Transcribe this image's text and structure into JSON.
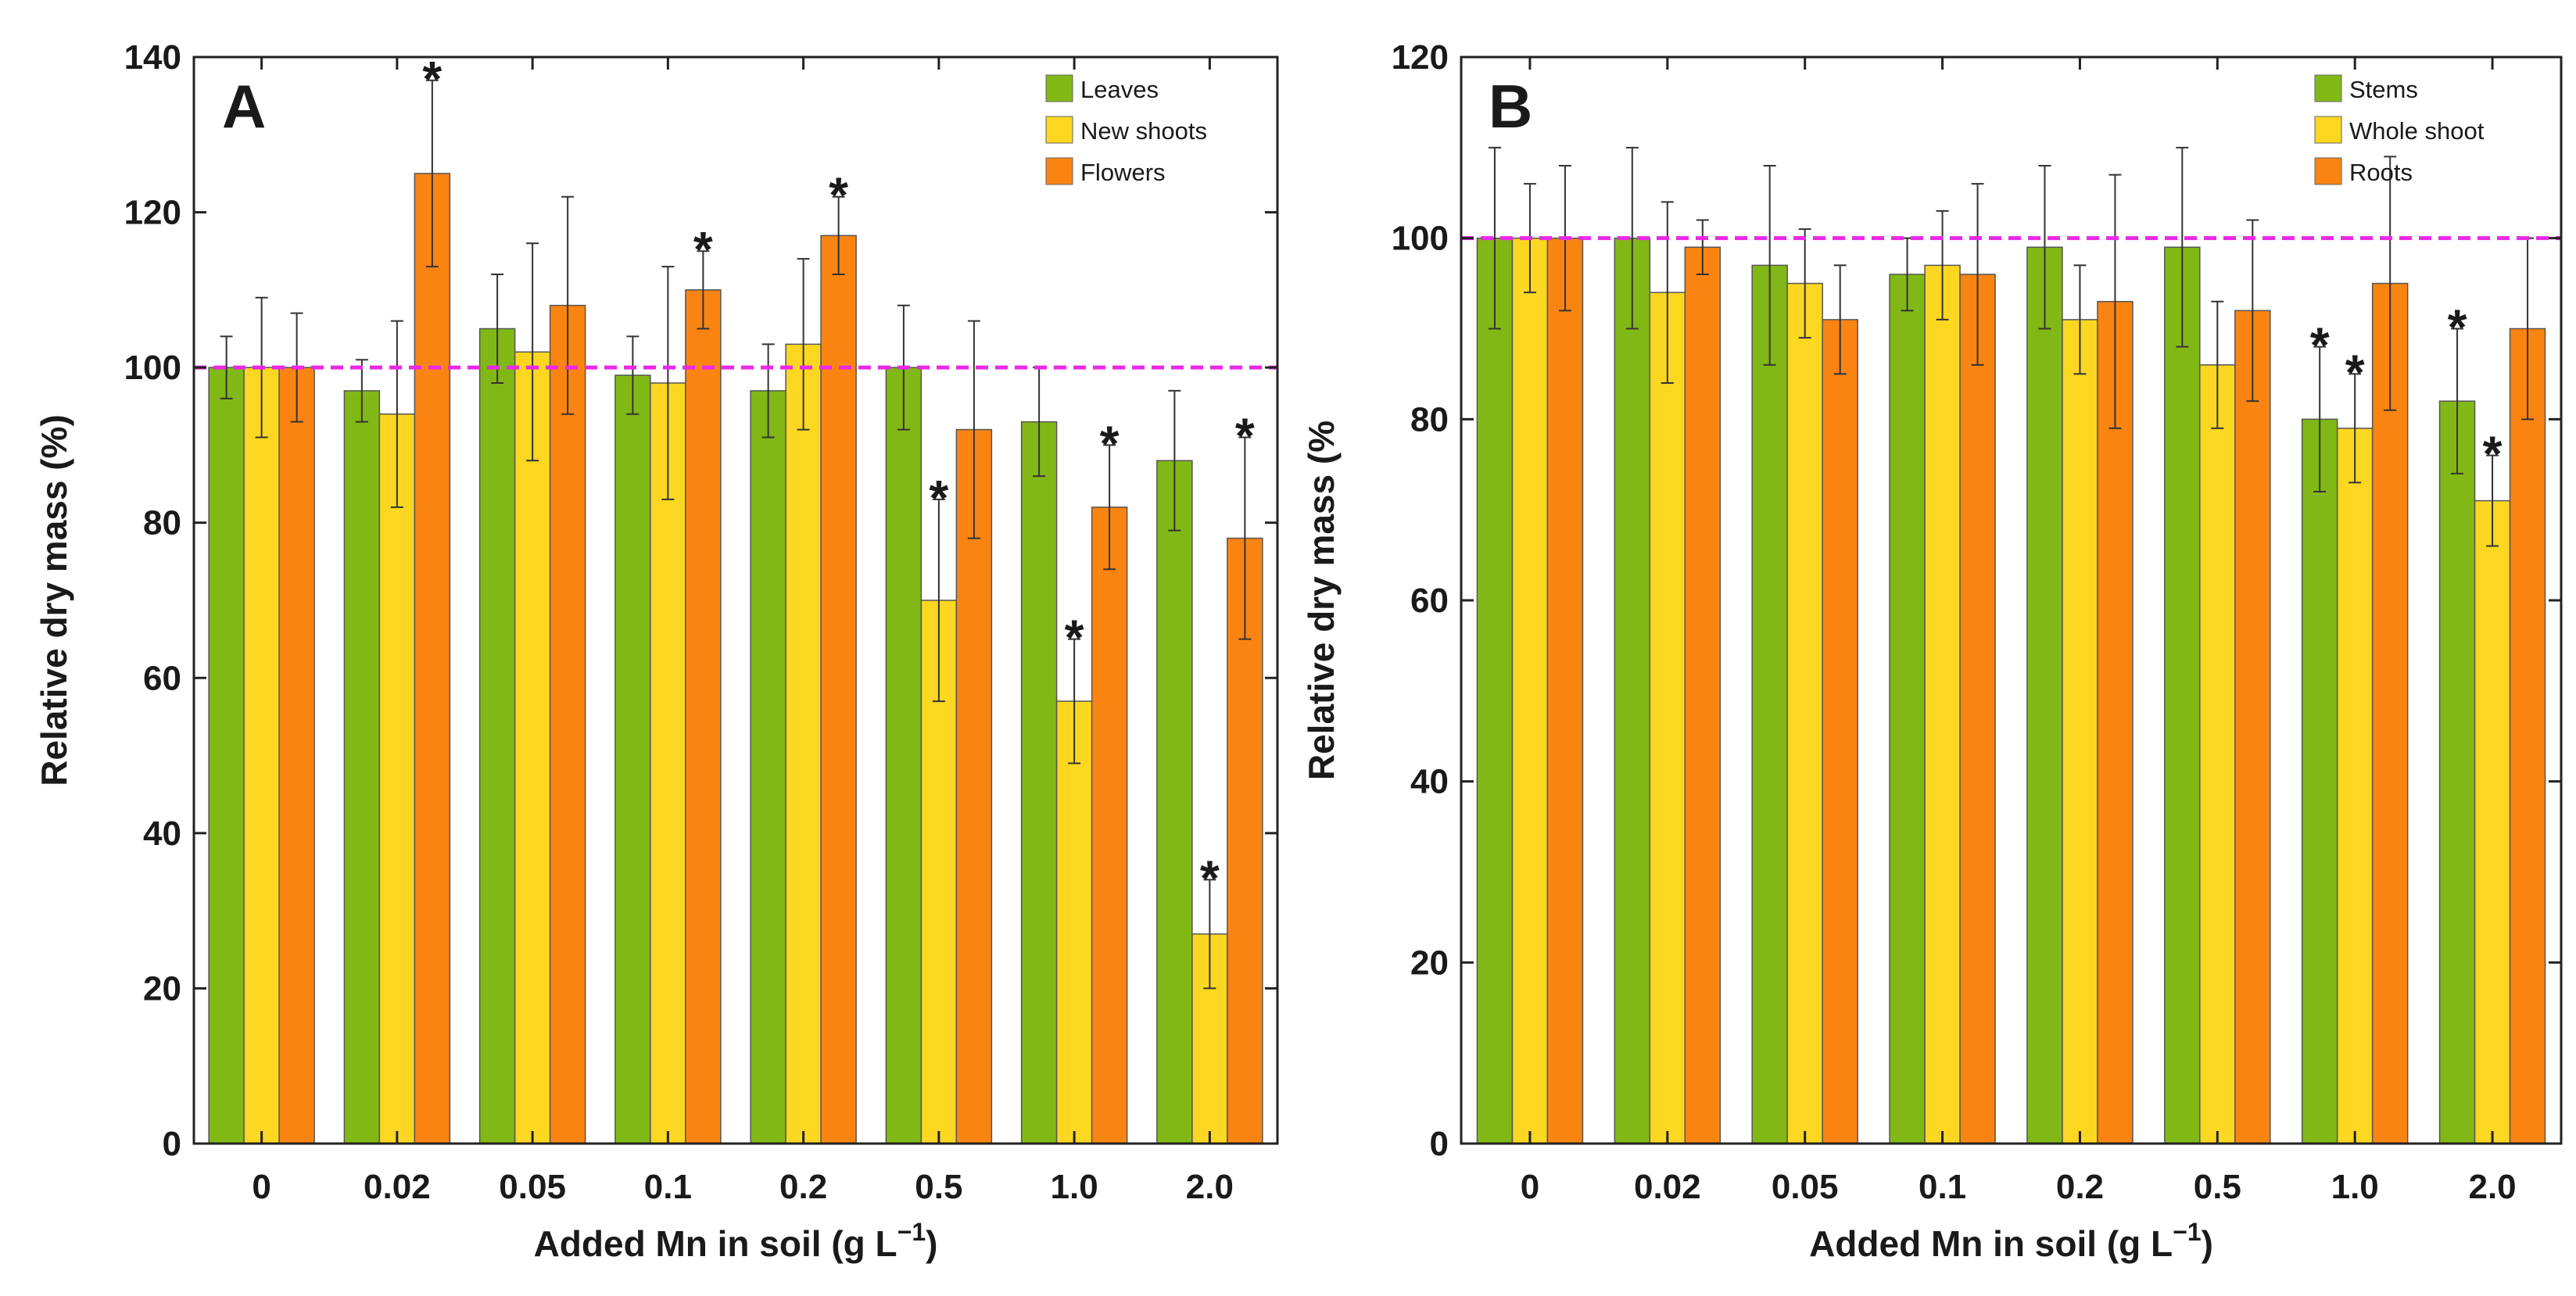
{
  "colors": {
    "green": "#82b815",
    "yellow": "#fcd722",
    "orange": "#fa8412",
    "reference_line": "#ea28e6",
    "axis": "#222222"
  },
  "chart_data": [
    {
      "type": "bar",
      "panel_label": "A",
      "xlabel": "Added Mn in soil (g L",
      "xlabel_superscript": "−1",
      "xlabel_suffix": ")",
      "ylabel": "Relative dry mass (%)",
      "ylim": [
        0,
        140
      ],
      "yticks": [
        "0",
        "20",
        "40",
        "60",
        "80",
        "100",
        "120",
        "140"
      ],
      "reference_line": 100,
      "legend_position": "top-right",
      "categories": [
        "0",
        "0.02",
        "0.05",
        "0.1",
        "0.2",
        "0.5",
        "1.0",
        "2.0"
      ],
      "series": [
        {
          "name": "Leaves",
          "color": "green",
          "values": [
            100,
            97,
            105,
            99,
            97,
            100,
            93,
            88
          ],
          "errors": [
            4,
            4,
            7,
            5,
            6,
            8,
            7,
            9
          ],
          "significant": [
            false,
            false,
            false,
            false,
            false,
            false,
            false,
            false
          ]
        },
        {
          "name": "New shoots",
          "color": "yellow",
          "values": [
            100,
            94,
            102,
            98,
            103,
            70,
            57,
            27
          ],
          "errors": [
            9,
            12,
            14,
            15,
            11,
            13,
            8,
            7
          ],
          "significant": [
            false,
            false,
            false,
            false,
            false,
            true,
            true,
            true
          ]
        },
        {
          "name": "Flowers",
          "color": "orange",
          "values": [
            100,
            125,
            108,
            110,
            117,
            92,
            82,
            78
          ],
          "errors": [
            7,
            12,
            14,
            5,
            5,
            14,
            8,
            13
          ],
          "significant": [
            false,
            true,
            false,
            true,
            true,
            false,
            true,
            true
          ]
        }
      ]
    },
    {
      "type": "bar",
      "panel_label": "B",
      "xlabel": "Added Mn in soil (g L",
      "xlabel_superscript": "−1",
      "xlabel_suffix": ")",
      "ylabel": "Relative dry mass  (%",
      "ylim": [
        0,
        120
      ],
      "yticks": [
        "0",
        "20",
        "40",
        "60",
        "80",
        "100",
        "120"
      ],
      "reference_line": 100,
      "legend_position": "top-right",
      "categories": [
        "0",
        "0.02",
        "0.05",
        "0.1",
        "0.2",
        "0.5",
        "1.0",
        "2.0"
      ],
      "series": [
        {
          "name": "Stems",
          "color": "green",
          "values": [
            100,
            100,
            97,
            96,
            99,
            99,
            80,
            82
          ],
          "errors": [
            10,
            10,
            11,
            4,
            9,
            11,
            8,
            8
          ],
          "significant": [
            false,
            false,
            false,
            false,
            false,
            false,
            true,
            true
          ]
        },
        {
          "name": "Whole shoot",
          "color": "yellow",
          "values": [
            100,
            94,
            95,
            97,
            91,
            86,
            79,
            71
          ],
          "errors": [
            6,
            10,
            6,
            6,
            6,
            7,
            6,
            5
          ],
          "significant": [
            false,
            false,
            false,
            false,
            false,
            false,
            true,
            true
          ]
        },
        {
          "name": "Roots",
          "color": "orange",
          "values": [
            100,
            99,
            91,
            96,
            93,
            92,
            95,
            90
          ],
          "errors": [
            8,
            3,
            6,
            10,
            14,
            10,
            14,
            10
          ],
          "significant": [
            false,
            false,
            false,
            false,
            false,
            false,
            false,
            false
          ]
        }
      ]
    }
  ]
}
